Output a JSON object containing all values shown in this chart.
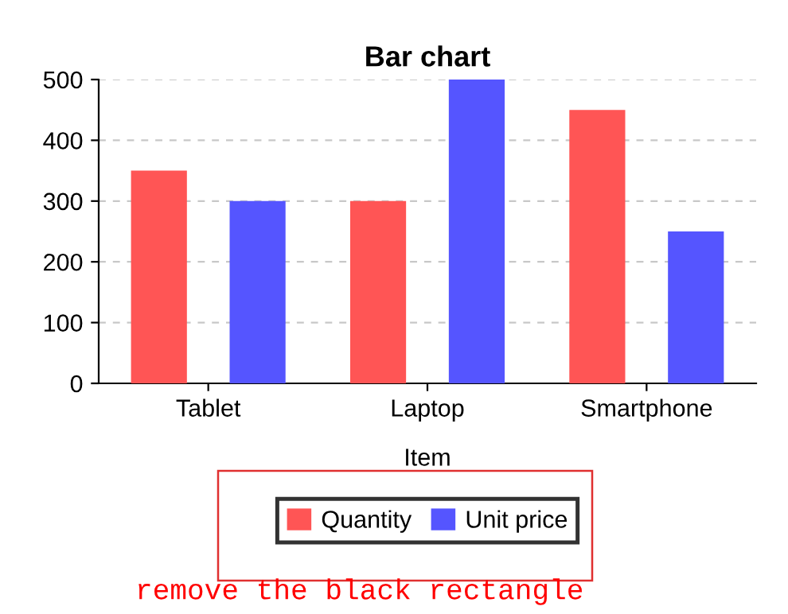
{
  "chart_data": {
    "type": "bar",
    "title": "Bar chart",
    "xlabel": "Item",
    "categories": [
      "Tablet",
      "Laptop",
      "Smartphone"
    ],
    "series": [
      {
        "name": "Quantity",
        "color": "#ff5555",
        "values": [
          350,
          300,
          450
        ]
      },
      {
        "name": "Unit price",
        "color": "#5555ff",
        "values": [
          300,
          500,
          250
        ]
      }
    ],
    "ylim": [
      0,
      500
    ],
    "yticks": [
      0,
      100,
      200,
      300,
      400,
      500
    ],
    "grid": "y",
    "legend": "bottom",
    "annotations": [
      "remove the black rectangle"
    ]
  }
}
